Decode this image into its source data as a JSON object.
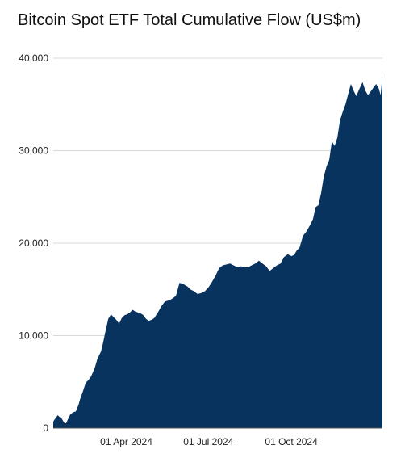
{
  "title": "Bitcoin Spot ETF Total Cumulative Flow (US$m)",
  "colors": {
    "area": "#08335e",
    "grid": "#d9d9d9",
    "text": "#222222"
  },
  "chart_data": {
    "type": "area",
    "title": "Bitcoin Spot ETF Total Cumulative Flow (US$m)",
    "xlabel": "",
    "ylabel": "",
    "ylim": [
      0,
      40000
    ],
    "yticks": [
      0,
      10000,
      20000,
      30000,
      40000
    ],
    "ytick_labels": [
      "0",
      "10,000",
      "20,000",
      "30,000",
      "40,000"
    ],
    "xlim": [
      "2024-01-11",
      "2025-01-10"
    ],
    "xticks": [
      "2024-04-01",
      "2024-07-01",
      "2024-10-01"
    ],
    "xtick_labels": [
      "01 Apr 2024",
      "01 Jul 2024",
      "01 Oct 2024"
    ],
    "grid": "horizontal",
    "legend": "none",
    "series": [
      {
        "x": [
          "2024-01-11",
          "2024-01-13",
          "2024-01-16",
          "2024-01-18",
          "2024-01-20",
          "2024-01-23",
          "2024-01-25",
          "2024-01-27",
          "2024-01-30",
          "2024-02-02",
          "2024-02-05",
          "2024-02-08",
          "2024-02-10",
          "2024-02-13",
          "2024-02-16",
          "2024-02-19",
          "2024-02-22",
          "2024-02-26",
          "2024-02-29",
          "2024-03-04",
          "2024-03-06",
          "2024-03-09",
          "2024-03-12",
          "2024-03-15",
          "2024-03-18",
          "2024-03-21",
          "2024-03-24",
          "2024-03-27",
          "2024-03-30",
          "2024-04-02",
          "2024-04-05",
          "2024-04-08",
          "2024-04-11",
          "2024-04-14",
          "2024-04-17",
          "2024-04-20",
          "2024-04-23",
          "2024-04-26",
          "2024-04-29",
          "2024-05-02",
          "2024-05-06",
          "2024-05-10",
          "2024-05-14",
          "2024-05-18",
          "2024-05-22",
          "2024-05-26",
          "2024-05-30",
          "2024-06-03",
          "2024-06-06",
          "2024-06-08",
          "2024-06-11",
          "2024-06-15",
          "2024-06-19",
          "2024-06-23",
          "2024-06-27",
          "2024-07-01",
          "2024-07-05",
          "2024-07-09",
          "2024-07-13",
          "2024-07-17",
          "2024-07-21",
          "2024-07-25",
          "2024-07-29",
          "2024-08-02",
          "2024-08-06",
          "2024-08-10",
          "2024-08-14",
          "2024-08-18",
          "2024-08-22",
          "2024-08-26",
          "2024-08-30",
          "2024-09-03",
          "2024-09-07",
          "2024-09-11",
          "2024-09-15",
          "2024-09-19",
          "2024-09-23",
          "2024-09-27",
          "2024-10-01",
          "2024-10-04",
          "2024-10-07",
          "2024-10-10",
          "2024-10-14",
          "2024-10-18",
          "2024-10-22",
          "2024-10-25",
          "2024-10-28",
          "2024-10-31",
          "2024-11-03",
          "2024-11-06",
          "2024-11-09",
          "2024-11-12",
          "2024-11-15",
          "2024-11-18",
          "2024-11-21",
          "2024-11-24",
          "2024-11-27",
          "2024-11-30",
          "2024-12-03",
          "2024-12-06",
          "2024-12-09",
          "2024-12-12",
          "2024-12-16",
          "2024-12-19",
          "2024-12-22",
          "2024-12-25",
          "2024-12-28",
          "2024-12-31",
          "2025-01-03",
          "2025-01-06",
          "2025-01-08",
          "2025-01-10"
        ],
        "values": [
          700,
          1000,
          1400,
          1200,
          1100,
          600,
          500,
          900,
          1500,
          1700,
          1800,
          2500,
          3200,
          4000,
          4900,
          5200,
          5600,
          6500,
          7500,
          8300,
          9100,
          10500,
          11800,
          12300,
          12000,
          11700,
          11300,
          11900,
          12200,
          12300,
          12500,
          12800,
          12600,
          12500,
          12400,
          12200,
          11800,
          11600,
          11700,
          11900,
          12500,
          13200,
          13700,
          13800,
          14000,
          14300,
          15700,
          15600,
          15400,
          15300,
          15000,
          14800,
          14500,
          14600,
          14800,
          15200,
          15800,
          16500,
          17300,
          17600,
          17700,
          17800,
          17600,
          17400,
          17500,
          17400,
          17400,
          17600,
          17800,
          18100,
          17800,
          17500,
          17000,
          17300,
          17600,
          17800,
          18500,
          18800,
          18600,
          18700,
          19200,
          19500,
          20800,
          21300,
          22000,
          22600,
          23900,
          24100,
          25400,
          27200,
          28300,
          29000,
          31000,
          30500,
          31400,
          33300,
          34200,
          35000,
          36100,
          37200,
          36500,
          35900,
          36800,
          37400,
          36500,
          36000,
          36400,
          36800,
          37200,
          36700,
          36000,
          38200
        ]
      }
    ]
  }
}
